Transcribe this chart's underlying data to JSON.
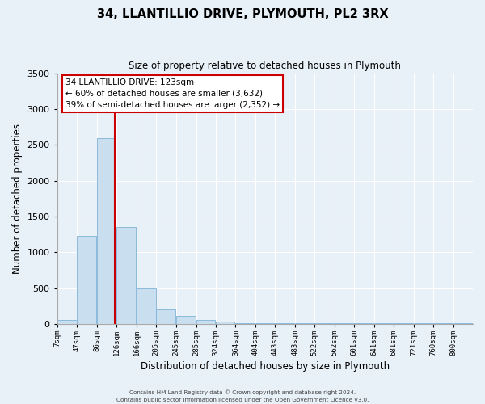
{
  "title": "34, LLANTILLIO DRIVE, PLYMOUTH, PL2 3RX",
  "subtitle": "Size of property relative to detached houses in Plymouth",
  "xlabel": "Distribution of detached houses by size in Plymouth",
  "ylabel": "Number of detached properties",
  "bar_labels": [
    "7sqm",
    "47sqm",
    "86sqm",
    "126sqm",
    "166sqm",
    "205sqm",
    "245sqm",
    "285sqm",
    "324sqm",
    "364sqm",
    "404sqm",
    "443sqm",
    "483sqm",
    "522sqm",
    "562sqm",
    "601sqm",
    "641sqm",
    "681sqm",
    "721sqm",
    "760sqm",
    "800sqm"
  ],
  "bar_values": [
    50,
    1230,
    2590,
    1350,
    500,
    200,
    110,
    50,
    30,
    5,
    5,
    5,
    5,
    5,
    5,
    5,
    5,
    5,
    5,
    5,
    5
  ],
  "bar_color": "#c9dff0",
  "bar_edgecolor": "#7fb3d8",
  "ylim": [
    0,
    3500
  ],
  "yticks": [
    0,
    500,
    1000,
    1500,
    2000,
    2500,
    3000,
    3500
  ],
  "annotation_title": "34 LLANTILLIO DRIVE: 123sqm",
  "annotation_line1": "← 60% of detached houses are smaller (3,632)",
  "annotation_line2": "39% of semi-detached houses are larger (2,352) →",
  "annotation_box_facecolor": "#ffffff",
  "annotation_box_edgecolor": "#cc0000",
  "vline_color": "#cc0000",
  "vline_x": 123,
  "footer1": "Contains HM Land Registry data © Crown copyright and database right 2024.",
  "footer2": "Contains public sector information licensed under the Open Government Licence v3.0.",
  "background_color": "#e8f0f8",
  "grid_color": "#ffffff",
  "bin_width": 39
}
